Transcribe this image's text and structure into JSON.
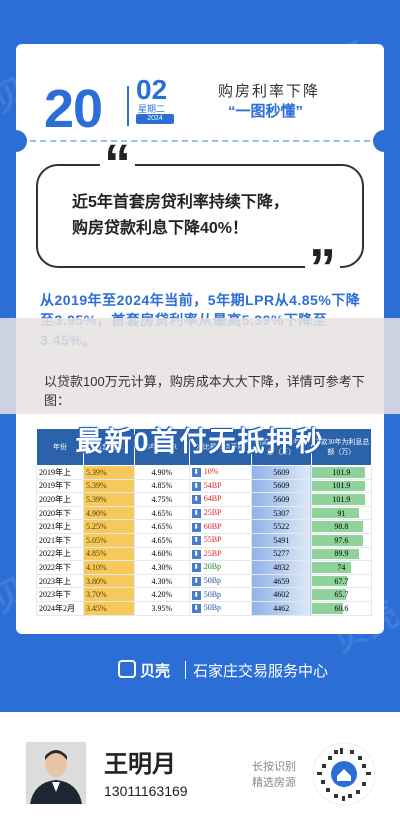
{
  "watermark": "贝壳",
  "date": {
    "day": "20",
    "month": "02",
    "weekday": "星期二",
    "year": "2024"
  },
  "title": {
    "line1": "购房利率下降",
    "line2": "“一图秒懂”"
  },
  "highlight": {
    "line1": "近5年首套房贷利率持续下降，",
    "line2": "购房贷款利息下降40%！"
  },
  "paragraph": "从2019年至2024年当前，5年期LPR从4.85%下降至3.95%，首套房贷利率从最高5.39%下降至3.45%。",
  "overlay": {
    "paragraph": "以贷款100万元计算，购房成本大大下降，详情可参考下图：",
    "banner": "最新0首付无抵押秒"
  },
  "table": {
    "headers": [
      "年份",
      "首套利率",
      "5年期LPR",
      "对比最高点下降",
      "贷款100万30年利息（万）",
      "贷款30年为利息总额（万）"
    ],
    "rows": [
      {
        "year": "2019年上",
        "first": "5.39%",
        "lpr": "4.90%",
        "change": "10%",
        "interest": "5609",
        "total": "101.9"
      },
      {
        "year": "2019年下",
        "first": "5.39%",
        "lpr": "4.85%",
        "change": "54BP",
        "interest": "5609",
        "total": "101.9"
      },
      {
        "year": "2020年上",
        "first": "5.39%",
        "lpr": "4.75%",
        "change": "64BP",
        "interest": "5609",
        "total": "101.9"
      },
      {
        "year": "2020年下",
        "first": "4.90%",
        "lpr": "4.65%",
        "change": "25BP",
        "interest": "5307",
        "total": "91"
      },
      {
        "year": "2021年上",
        "first": "5.25%",
        "lpr": "4.65%",
        "change": "60BP",
        "interest": "5522",
        "total": "98.8"
      },
      {
        "year": "2021年下",
        "first": "5.05%",
        "lpr": "4.65%",
        "change": "55BP",
        "interest": "5491",
        "total": "97.6"
      },
      {
        "year": "2022年上",
        "first": "4.85%",
        "lpr": "4.60%",
        "change": "25BP",
        "interest": "5277",
        "total": "89.9"
      },
      {
        "year": "2022年下",
        "first": "4.10%",
        "lpr": "4.30%",
        "change": "20Bp",
        "interest": "4832",
        "total": "74"
      },
      {
        "year": "2023年上",
        "first": "3.80%",
        "lpr": "4.30%",
        "change": "50Bp",
        "interest": "4659",
        "total": "67.7"
      },
      {
        "year": "2023年下",
        "first": "3.70%",
        "lpr": "4.20%",
        "change": "50Bp",
        "interest": "4602",
        "total": "65.7"
      },
      {
        "year": "2024年2月",
        "first": "3.45%",
        "lpr": "3.95%",
        "change": "50Bp",
        "interest": "4462",
        "total": "60.6"
      }
    ]
  },
  "footer": {
    "logo": "贝壳",
    "org": "石家庄交易服务中心"
  },
  "agent": {
    "name": "王明月",
    "phone": "13011163169",
    "qr_hint1": "长按识别",
    "qr_hint2": "精选房源"
  },
  "colors": {
    "brand_blue": "#2b6fd6",
    "gold": "#f7c85a",
    "green": "#8fd39a",
    "red": "#dd2222"
  }
}
